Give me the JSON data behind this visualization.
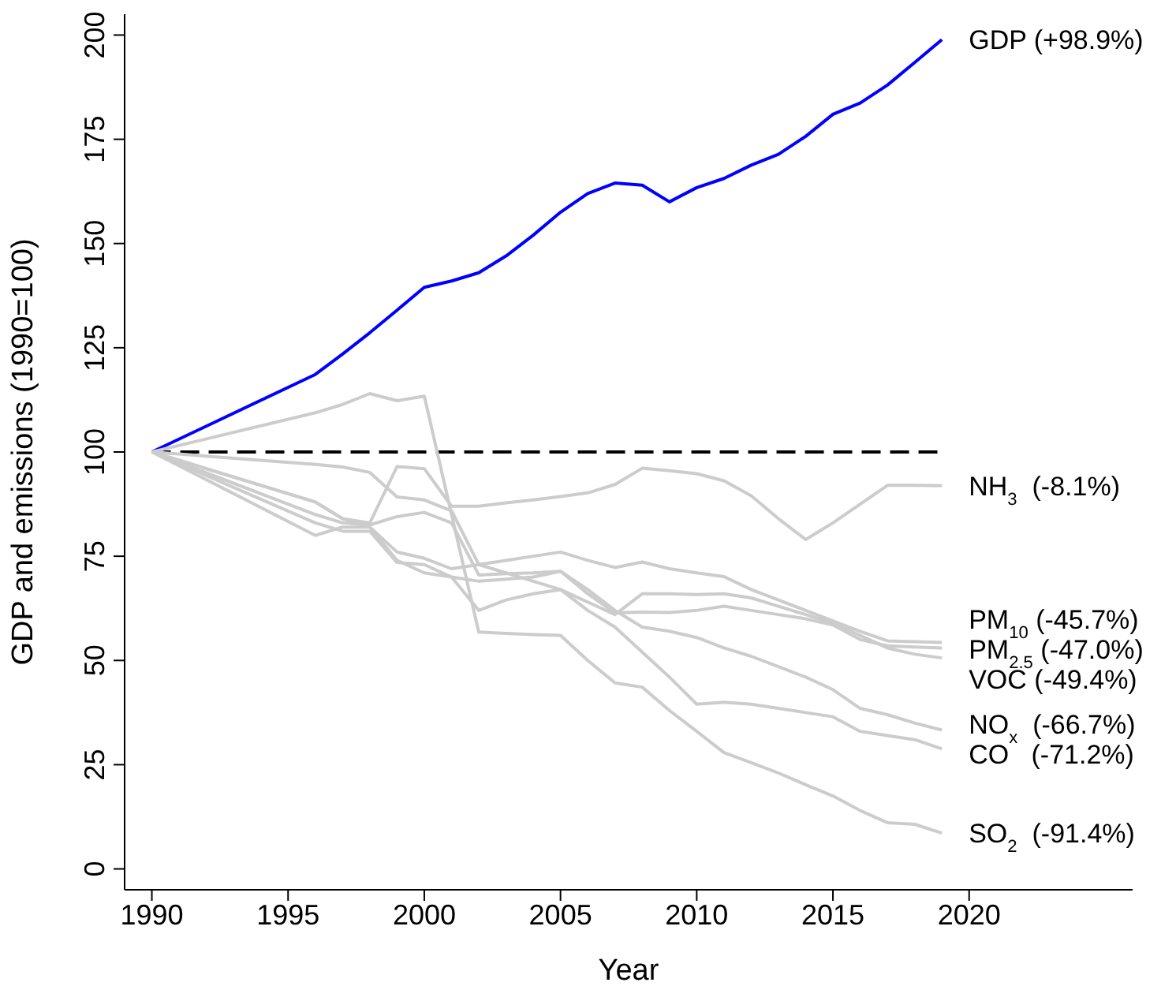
{
  "chart_data": {
    "type": "line",
    "xlabel": "Year",
    "ylabel": "GDP and emissions (1990=100)",
    "x": [
      1990,
      1996,
      1997,
      1998,
      1999,
      2000,
      2001,
      2002,
      2003,
      2004,
      2005,
      2006,
      2007,
      2008,
      2009,
      2010,
      2011,
      2012,
      2013,
      2014,
      2015,
      2016,
      2017,
      2018,
      2019
    ],
    "series": [
      {
        "name": "GDP (+98.9%)",
        "color": "#0000ff",
        "values": [
          100,
          118.6,
          123.5,
          128.6,
          134,
          139.5,
          141,
          143,
          147,
          152,
          157.5,
          162,
          164.5,
          164,
          160,
          163.4,
          165.6,
          168.8,
          171.4,
          175.7,
          181,
          183.7,
          188,
          193.4,
          198.9
        ]
      },
      {
        "name": "NH$_{3}$  (-8.1%)",
        "color": "#cccccc",
        "values": [
          100,
          88,
          84,
          83,
          96.5,
          96,
          87,
          87,
          87.8,
          88.5,
          89.3,
          90.2,
          92.2,
          96.1,
          95.5,
          94.8,
          93.1,
          89.5,
          84,
          79,
          83,
          87.5,
          92,
          92,
          91.9
        ]
      },
      {
        "name": "PM$_{10}$ (-45.7%)",
        "color": "#cccccc",
        "values": [
          100,
          97,
          96.4,
          95.1,
          89.2,
          88.5,
          85.9,
          73,
          74,
          75,
          76,
          74,
          72.3,
          73.6,
          72,
          71,
          70.1,
          67,
          64.5,
          62,
          59.5,
          57,
          54.7,
          54.5,
          54.3
        ]
      },
      {
        "name": "PM$_{2.5}$ (-47.0%)",
        "color": "#cccccc",
        "values": [
          100,
          85,
          83,
          82.5,
          84.5,
          85.5,
          83,
          70.5,
          70.8,
          71,
          71.4,
          66,
          61.4,
          61.6,
          61.5,
          62,
          63,
          62,
          61,
          60,
          58.5,
          55,
          53.5,
          53.2,
          53
        ]
      },
      {
        "name": "VOC (-49.4%)",
        "color": "#cccccc",
        "values": [
          100,
          88,
          84,
          82,
          76,
          74.5,
          72,
          73,
          71,
          69,
          67,
          64,
          61,
          66,
          66,
          65.8,
          66,
          65,
          63,
          61,
          59,
          56,
          53,
          51.5,
          50.6
        ]
      },
      {
        "name": "NO$_{x}$  (-66.7%)",
        "color": "#cccccc",
        "values": [
          100,
          83,
          81,
          81,
          73.5,
          73,
          70,
          69,
          69.5,
          70,
          71.4,
          67,
          62,
          58,
          57,
          55.5,
          53,
          51,
          48.5,
          46,
          43,
          38.5,
          37,
          35,
          33.3
        ]
      },
      {
        "name": "CO   (-71.2%)",
        "color": "#cccccc",
        "values": [
          100,
          80,
          82,
          82,
          74,
          71,
          70,
          62,
          64.5,
          66,
          67,
          62,
          58,
          52,
          46,
          39.5,
          40,
          39.5,
          38.5,
          37.5,
          36.5,
          33,
          32,
          31,
          28.8
        ]
      },
      {
        "name": "SO$_{2}$  (-91.4%)",
        "color": "#cccccc",
        "values": [
          100,
          109.4,
          111.4,
          114,
          112.3,
          113.4,
          85,
          56.8,
          56.5,
          56.2,
          56,
          50,
          44.6,
          43.6,
          38,
          33,
          27.9,
          25.5,
          23,
          20.2,
          17.5,
          14,
          11.1,
          10.7,
          8.6
        ]
      }
    ],
    "xlim": [
      1989,
      2026
    ],
    "ylim": [
      -5,
      205
    ],
    "xticks": [
      1990,
      1995,
      2000,
      2005,
      2010,
      2015,
      2020
    ],
    "yticks": [
      0,
      25,
      50,
      75,
      100,
      125,
      150,
      175,
      200
    ],
    "ref_lines": [
      {
        "axis": "y",
        "value": 100,
        "color": "#000000",
        "line_style": "dashed"
      }
    ],
    "marker": "none"
  }
}
